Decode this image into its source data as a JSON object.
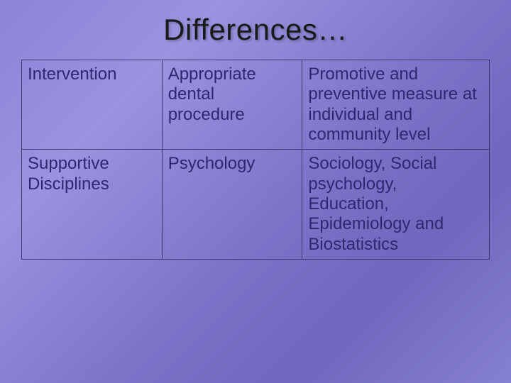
{
  "title": "Differences…",
  "table": {
    "rows": [
      [
        "Intervention",
        "Appropriate dental procedure",
        "Promotive and preventive measure at individual and community level"
      ],
      [
        "Supportive Disciplines",
        "Psychology",
        "Sociology, Social psychology, Education, Epidemiology and Biostatistics"
      ]
    ],
    "border_color": "#3b3670",
    "text_color": "#2d2870",
    "font_size": 24,
    "col_widths_pct": [
      30,
      30,
      40
    ]
  },
  "background": {
    "gradient_colors": [
      "#8b84d7",
      "#9a93df",
      "#7b74c9",
      "#6e67bd",
      "#8680d2"
    ]
  },
  "title_style": {
    "font_size": 42,
    "color": "#1a1a1a"
  }
}
